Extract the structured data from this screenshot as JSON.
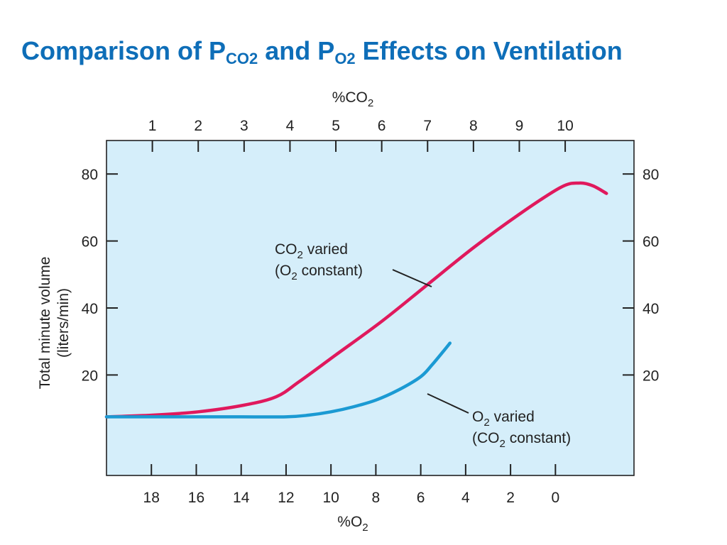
{
  "slide": {
    "title_parts": {
      "a": "Comparison of P",
      "b": "CO2",
      "c": " and P",
      "d": "O2",
      "e": " Effects on Ventilation"
    }
  },
  "chart_data": {
    "type": "line",
    "title": "",
    "top_axis": {
      "label": "%CO",
      "label_sub": "2",
      "range": [
        0,
        11.5
      ],
      "ticks": [
        1,
        2,
        3,
        4,
        5,
        6,
        7,
        8,
        9,
        10
      ]
    },
    "bottom_axis": {
      "label": "%O",
      "label_sub": "2",
      "range": [
        20,
        -3.5
      ],
      "ticks": [
        18,
        16,
        14,
        12,
        10,
        8,
        6,
        4,
        2,
        0
      ]
    },
    "y_axis": {
      "label_line1": "Total minute volume",
      "label_line2": "(liters/min)",
      "range": [
        -10,
        90
      ],
      "ticks": [
        20,
        40,
        60,
        80
      ]
    },
    "grid": false,
    "background_color": "#d5eefa",
    "series": [
      {
        "axis": "top",
        "color": "#e0195d",
        "annotation": {
          "line1": "CO",
          "line1_sub": "2",
          "line1_tail": " varied",
          "line2": "(O",
          "line2_sub": "2",
          "line2_tail": " constant)"
        },
        "points": [
          [
            0,
            7.5
          ],
          [
            1,
            8
          ],
          [
            2,
            9
          ],
          [
            3,
            11
          ],
          [
            3.7,
            13.5
          ],
          [
            4.2,
            18
          ],
          [
            5,
            26
          ],
          [
            6,
            36
          ],
          [
            7,
            47
          ],
          [
            8,
            58
          ],
          [
            9,
            68
          ],
          [
            9.9,
            76
          ],
          [
            10.3,
            77.3
          ],
          [
            10.6,
            76.5
          ],
          [
            10.9,
            74.2
          ]
        ]
      },
      {
        "axis": "bottom",
        "color": "#1b9ad3",
        "annotation": {
          "line1": "O",
          "line1_sub": "2",
          "line1_tail": " varied",
          "line2": "(CO",
          "line2_sub": "2",
          "line2_tail": " constant)"
        },
        "points": [
          [
            20,
            7.5
          ],
          [
            18,
            7.5
          ],
          [
            16,
            7.5
          ],
          [
            14,
            7.5
          ],
          [
            12,
            7.5
          ],
          [
            11,
            8
          ],
          [
            10,
            9
          ],
          [
            9,
            10.5
          ],
          [
            8,
            12.5
          ],
          [
            7,
            15.5
          ],
          [
            6,
            19.5
          ],
          [
            5.5,
            23
          ],
          [
            5,
            27
          ],
          [
            4.7,
            29.5
          ]
        ]
      }
    ]
  }
}
